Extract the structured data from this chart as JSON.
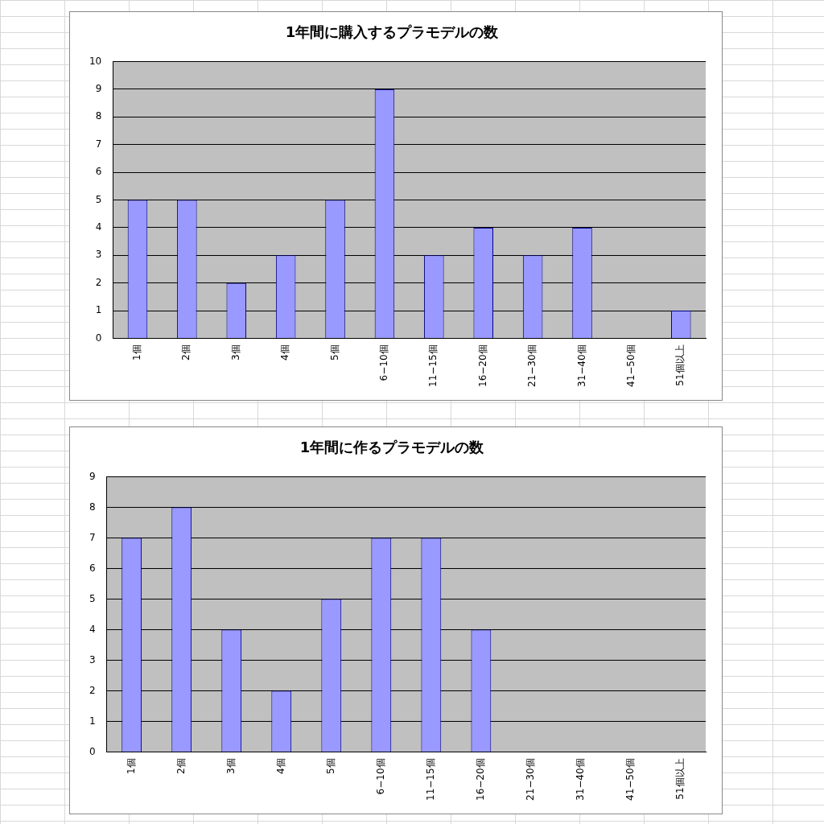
{
  "chart_data": [
    {
      "type": "bar",
      "title": "1年間に購入するプラモデルの数",
      "categories": [
        "1個",
        "2個",
        "3個",
        "4個",
        "5個",
        "6−10個",
        "11−15個",
        "16−20個",
        "21−30個",
        "31−40個",
        "41−50個",
        "51個以上"
      ],
      "values": [
        5,
        5,
        2,
        3,
        5,
        9,
        3,
        4,
        3,
        4,
        0,
        1
      ],
      "color": "#9999ff",
      "ylim": [
        0,
        10
      ],
      "yticks": [
        0,
        1,
        2,
        3,
        4,
        5,
        6,
        7,
        8,
        9,
        10
      ],
      "grid": "y"
    },
    {
      "type": "bar",
      "title": "1年間に作るプラモデルの数",
      "categories": [
        "1個",
        "2個",
        "3個",
        "4個",
        "5個",
        "6−10個",
        "11−15個",
        "16−20個",
        "21−30個",
        "31−40個",
        "41−50個",
        "51個以上"
      ],
      "values": [
        7,
        8,
        4,
        2,
        5,
        7,
        7,
        4,
        0,
        0,
        0,
        0
      ],
      "color": "#9999ff",
      "ylim": [
        0,
        9
      ],
      "yticks": [
        0,
        1,
        2,
        3,
        4,
        5,
        6,
        7,
        8,
        9
      ],
      "grid": "y"
    }
  ]
}
